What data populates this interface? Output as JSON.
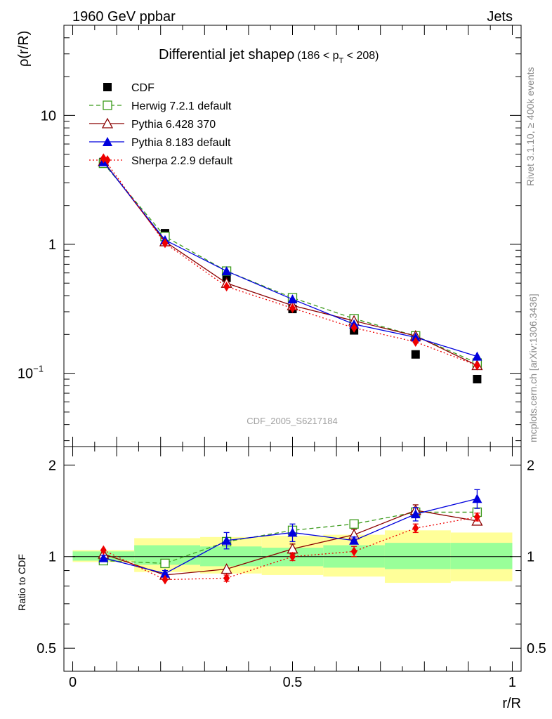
{
  "header": {
    "left": "1960 GeV ppbar",
    "right": "Jets",
    "title": "Differential jet shapeρ",
    "title_cut": "(186 < p",
    "title_cut_sub": "T",
    "title_cut_end": " < 208)",
    "side_version": "Rivet 3.1.10, ≥ 400k events",
    "side_site": "mcplots.cern.ch [arXiv:1306.3436]",
    "analysis_id": "CDF_2005_S6217184"
  },
  "chart_data": {
    "type": "line",
    "title": "Differential jet shapeρ (186 < pT < 208)",
    "xlabel": "r/R",
    "ylabel": "ρ(r/R)",
    "ratio_ylabel": "Ratio to CDF",
    "x": [
      0.07,
      0.21,
      0.35,
      0.5,
      0.64,
      0.78,
      0.92
    ],
    "xlim": [
      -0.02,
      1.02
    ],
    "main_ylim": [
      0.027,
      50
    ],
    "ratio_ylim": [
      0.42,
      2.3
    ],
    "main_yticks": [
      {
        "v": 10,
        "label": "10"
      },
      {
        "v": 1,
        "label": "1"
      },
      {
        "v": 0.1,
        "label": "10",
        "sup": "−1"
      }
    ],
    "ratio_yticks": [
      {
        "v": 2,
        "label": "2"
      },
      {
        "v": 1,
        "label": "1"
      },
      {
        "v": 0.5,
        "label": "0.5"
      }
    ],
    "xticks": [
      {
        "v": 0,
        "label": "0"
      },
      {
        "v": 0.5,
        "label": "0.5"
      },
      {
        "v": 1,
        "label": "1"
      }
    ],
    "data_name": "CDF",
    "data_values": [
      4.35,
      1.22,
      0.55,
      0.315,
      0.215,
      0.14,
      0.09
    ],
    "band_edges": [
      0,
      0.14,
      0.29,
      0.43,
      0.57,
      0.71,
      0.86,
      1.0
    ],
    "band_inner": [
      [
        0.97,
        1.04
      ],
      [
        0.94,
        1.09
      ],
      [
        0.93,
        1.08
      ],
      [
        0.93,
        1.07
      ],
      [
        0.92,
        1.09
      ],
      [
        0.91,
        1.11
      ],
      [
        0.91,
        1.11
      ]
    ],
    "band_outer": [
      [
        0.96,
        1.05
      ],
      [
        0.89,
        1.15
      ],
      [
        0.88,
        1.16
      ],
      [
        0.87,
        1.17
      ],
      [
        0.86,
        1.18
      ],
      [
        0.82,
        1.22
      ],
      [
        0.83,
        1.2
      ]
    ],
    "series": [
      {
        "name": "Herwig 7.2.1 default",
        "color": "#3a9a1a",
        "dash": "6,4",
        "marker": "open-square",
        "values": [
          4.25,
          1.15,
          0.62,
          0.385,
          0.265,
          0.195,
          0.12
        ],
        "ratio": [
          0.97,
          0.95,
          1.12,
          1.22,
          1.28,
          1.4,
          1.4
        ],
        "ratio_err": [
          0,
          0.02,
          0,
          0,
          0,
          0,
          0
        ]
      },
      {
        "name": "Pythia 6.428 370",
        "color": "#8b0000",
        "dash": "",
        "marker": "open-triangle",
        "values": [
          4.4,
          1.05,
          0.5,
          0.335,
          0.255,
          0.195,
          0.115
        ],
        "ratio": [
          1.02,
          0.87,
          0.91,
          1.06,
          1.18,
          1.42,
          1.31
        ],
        "ratio_err": [
          0,
          0,
          0,
          0.04,
          0.05,
          0.06,
          0.04
        ]
      },
      {
        "name": "Pythia 8.183 default",
        "color": "#0000dd",
        "dash": "",
        "marker": "filled-triangle",
        "values": [
          4.35,
          1.08,
          0.62,
          0.375,
          0.24,
          0.19,
          0.135
        ],
        "ratio": [
          0.99,
          0.88,
          1.13,
          1.2,
          1.13,
          1.38,
          1.55
        ],
        "ratio_err": [
          0.02,
          0.02,
          0.07,
          0.08,
          0.03,
          0.07,
          0.11
        ]
      },
      {
        "name": "Sherpa 2.2.9 default",
        "color": "#ee0000",
        "dash": "2,3",
        "marker": "filled-diamond",
        "values": [
          4.65,
          1.02,
          0.47,
          0.32,
          0.225,
          0.175,
          0.115
        ],
        "ratio": [
          1.05,
          0.84,
          0.85,
          1.0,
          1.04,
          1.24,
          1.35
        ],
        "ratio_err": [
          0,
          0,
          0.02,
          0.03,
          0.04,
          0.04,
          0.04
        ]
      }
    ]
  }
}
